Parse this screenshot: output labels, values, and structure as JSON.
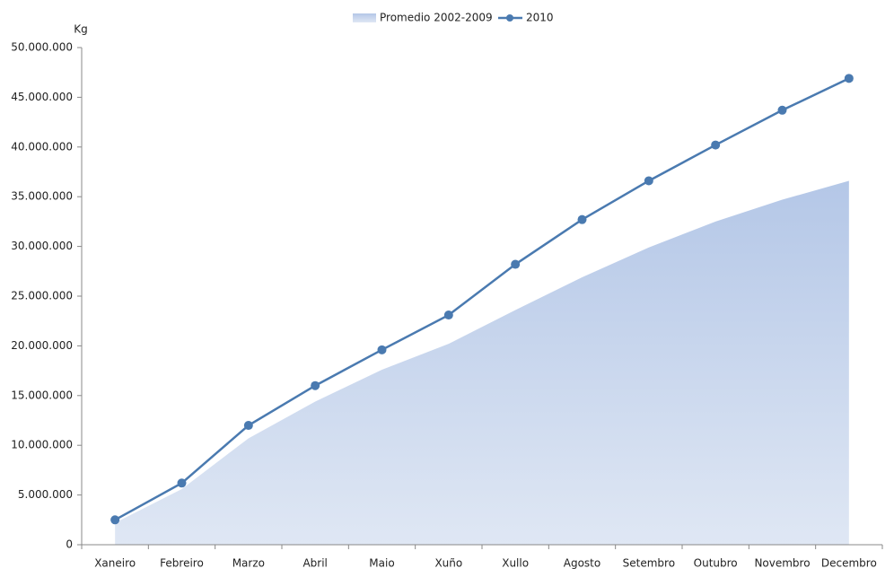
{
  "chart_data": {
    "type": "area-line",
    "y_label": "Kg",
    "categories": [
      "Xaneiro",
      "Febreiro",
      "Marzo",
      "Abril",
      "Maio",
      "Xuño",
      "Xullo",
      "Agosto",
      "Setembro",
      "Outubro",
      "Novembro",
      "Decembro"
    ],
    "series": [
      {
        "name": "Promedio 2002-2009",
        "kind": "area",
        "color": "#b4c7e7",
        "values": [
          2200000,
          5600000,
          10700000,
          14400000,
          17600000,
          20200000,
          23600000,
          26900000,
          29900000,
          32500000,
          34700000,
          36600000
        ]
      },
      {
        "name": "2010",
        "kind": "line",
        "color": "#4a7ab0",
        "values": [
          2500000,
          6200000,
          12000000,
          16000000,
          19600000,
          23100000,
          28200000,
          32700000,
          36600000,
          40200000,
          43700000,
          46900000
        ]
      }
    ],
    "ylim": [
      0,
      50000000
    ],
    "yticks": [
      0,
      {
        "value": 5000000,
        "label": "5.000.000"
      },
      {
        "value": 10000000,
        "label": "10.000.000"
      },
      {
        "value": 15000000,
        "label": "15.000.000"
      },
      {
        "value": 20000000,
        "label": "20.000.000"
      },
      {
        "value": 25000000,
        "label": "25.000.000"
      },
      {
        "value": 30000000,
        "label": "30.000.000"
      },
      {
        "value": 35000000,
        "label": "35.000.000"
      },
      {
        "value": 40000000,
        "label": "40.000.000"
      },
      {
        "value": 45000000,
        "label": "45.000.000"
      },
      {
        "value": 50000000,
        "label": "50.000.000"
      }
    ],
    "grid": false
  }
}
